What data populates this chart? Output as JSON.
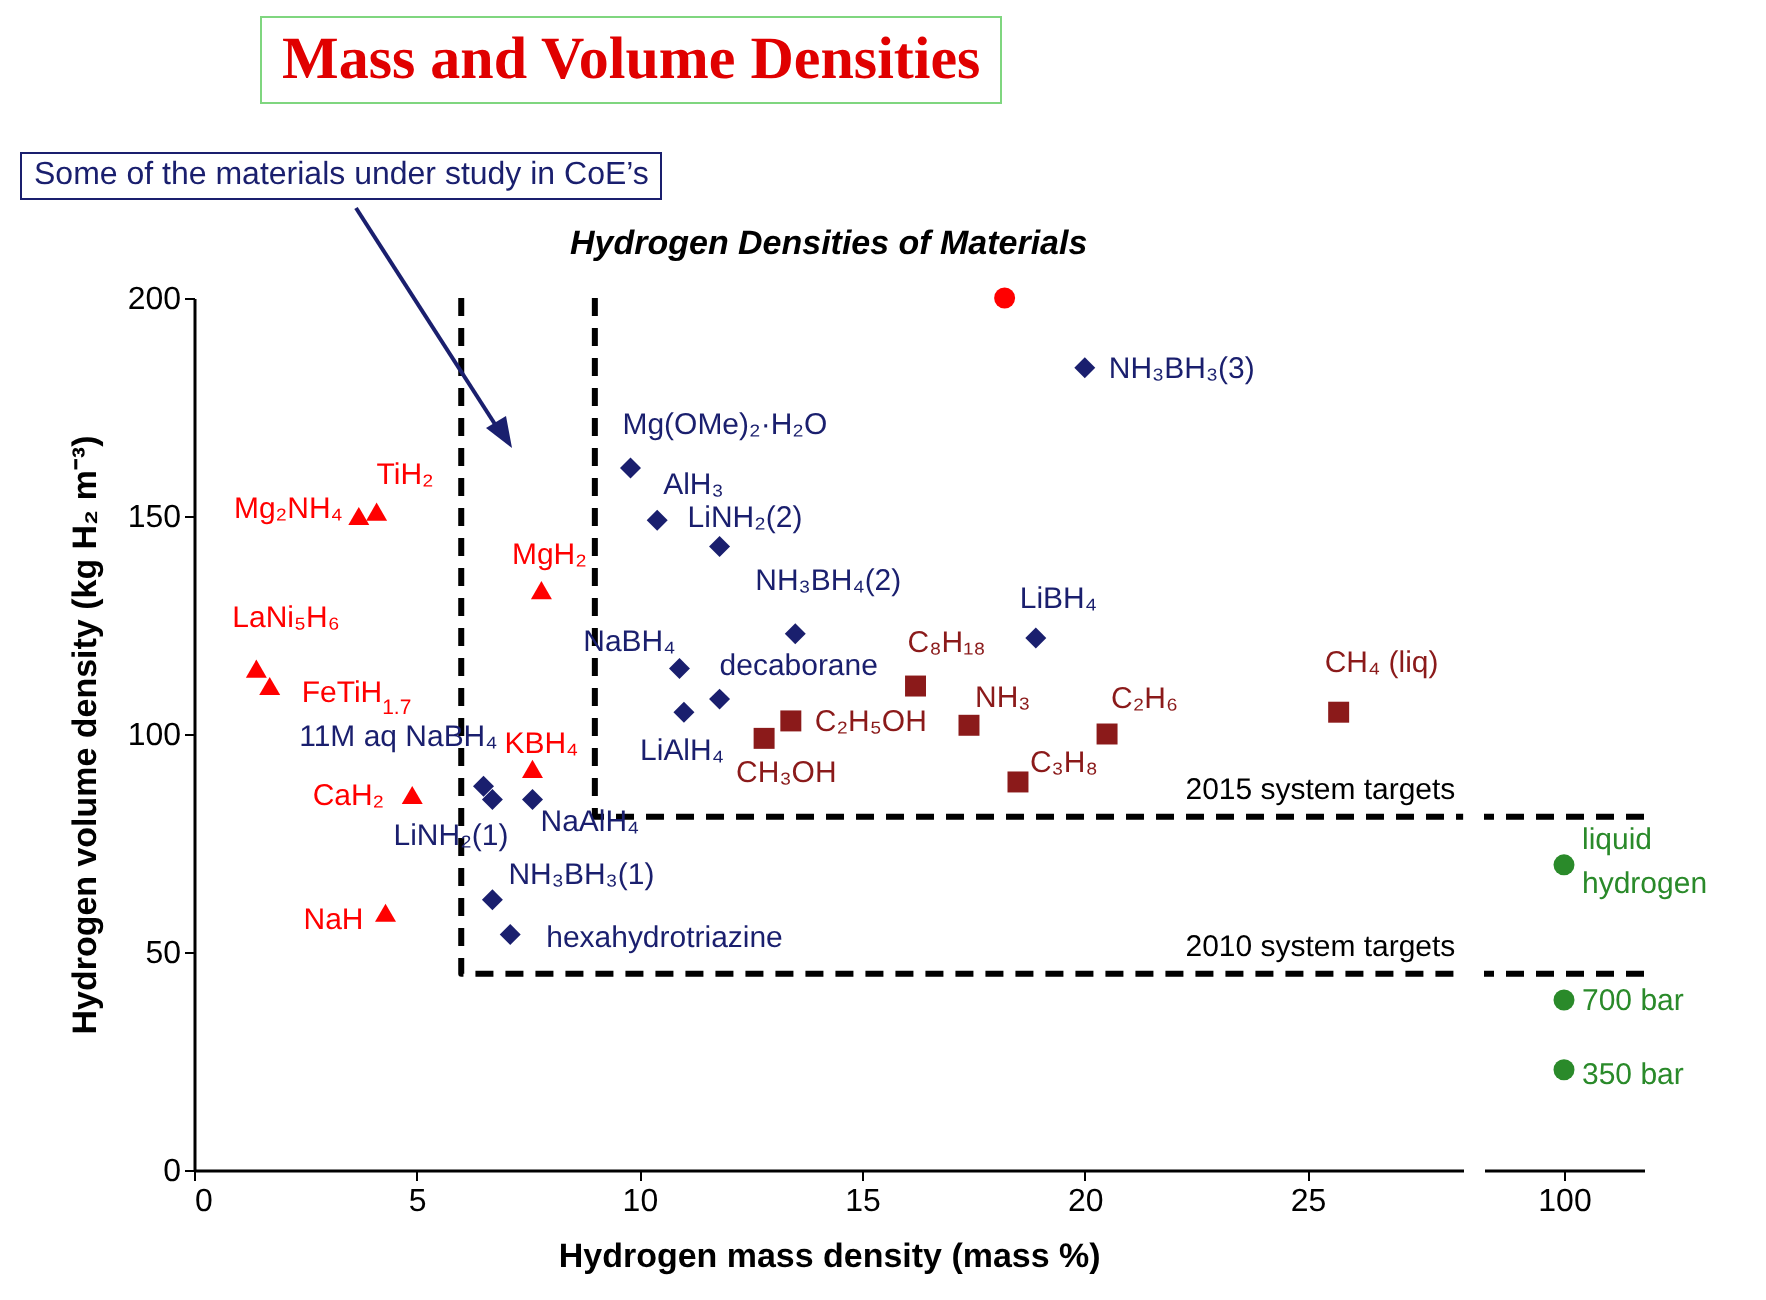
{
  "chart_data": [
    {
      "type": "scatter",
      "title": "Mass and Volume Densities",
      "subtitle": "Hydrogen Densities of Materials",
      "xlabel": "Hydrogen mass density (mass %)",
      "ylabel": "Hydrogen volume density (kg H₂ m⁻³)",
      "xlim": [
        0,
        28.5
      ],
      "xticks": [
        0,
        5,
        10,
        15,
        20,
        25
      ],
      "ylim": [
        0,
        200
      ],
      "yticks": [
        0,
        50,
        100,
        150,
        200
      ],
      "annotations": [
        "Some of the materials under study in CoE’s"
      ],
      "series": [
        {
          "name": "NH₃BH₃(3)",
          "color": "#1a1f6e",
          "marker": "diamond",
          "x": [
            20
          ],
          "values": [
            184
          ]
        },
        {
          "name": "Mg(OMe)₂·H₂O",
          "color": "#1a1f6e",
          "marker": "diamond",
          "x": [
            9.8
          ],
          "values": [
            161
          ]
        },
        {
          "name": "AlH₃",
          "color": "#1a1f6e",
          "marker": "diamond",
          "x": [
            10.4
          ],
          "values": [
            149
          ]
        },
        {
          "name": "LiNH₂(2)",
          "color": "#1a1f6e",
          "marker": "diamond",
          "x": [
            11.8
          ],
          "values": [
            143
          ]
        },
        {
          "name": "NH₃BH₄(2)",
          "color": "#1a1f6e",
          "marker": "diamond",
          "x": [
            13.5
          ],
          "values": [
            123
          ]
        },
        {
          "name": "LiBH₄",
          "color": "#1a1f6e",
          "marker": "diamond",
          "x": [
            18.9
          ],
          "values": [
            122
          ]
        },
        {
          "name": "NaBH₄",
          "color": "#1a1f6e",
          "marker": "diamond",
          "x": [
            10.9
          ],
          "values": [
            115
          ]
        },
        {
          "name": "decaborane",
          "color": "#1a1f6e",
          "marker": "diamond",
          "x": [
            11.8
          ],
          "values": [
            108
          ]
        },
        {
          "name": "LiAlH₄",
          "color": "#1a1f6e",
          "marker": "diamond",
          "x": [
            11
          ],
          "values": [
            105
          ]
        },
        {
          "name": "11M aq NaBH₄",
          "color": "#1a1f6e",
          "marker": "diamond",
          "x": [
            6.5
          ],
          "values": [
            88
          ]
        },
        {
          "name": "LiNH₂(1)",
          "color": "#1a1f6e",
          "marker": "diamond",
          "x": [
            6.7
          ],
          "values": [
            85
          ]
        },
        {
          "name": "NaAlH₄",
          "color": "#1a1f6e",
          "marker": "diamond",
          "x": [
            7.6
          ],
          "values": [
            85
          ]
        },
        {
          "name": "NH₃BH₃(1)",
          "color": "#1a1f6e",
          "marker": "diamond",
          "x": [
            6.7
          ],
          "values": [
            62
          ]
        },
        {
          "name": "hexahydrotriazine",
          "color": "#1a1f6e",
          "marker": "diamond",
          "x": [
            7.1
          ],
          "values": [
            54
          ]
        },
        {
          "name": "TiH₂",
          "color": "#ff0000",
          "marker": "triangle",
          "x": [
            4.1
          ],
          "values": [
            151
          ]
        },
        {
          "name": "Mg₂NH₄",
          "color": "#ff0000",
          "marker": "triangle",
          "x": [
            3.7
          ],
          "values": [
            150
          ]
        },
        {
          "name": "MgH₂",
          "color": "#ff0000",
          "marker": "triangle",
          "x": [
            7.8
          ],
          "values": [
            133
          ]
        },
        {
          "name": "LaNi₅H₆",
          "color": "#ff0000",
          "marker": "triangle",
          "x": [
            1.4
          ],
          "values": [
            115
          ]
        },
        {
          "name": "FeTiH$_{1.7}$",
          "color": "#ff0000",
          "marker": "triangle",
          "x": [
            1.7
          ],
          "values": [
            111
          ]
        },
        {
          "name": "KBH₄",
          "color": "#ff0000",
          "marker": "triangle",
          "x": [
            7.6
          ],
          "values": [
            92
          ]
        },
        {
          "name": "CaH₂",
          "color": "#ff0000",
          "marker": "triangle",
          "x": [
            4.9
          ],
          "values": [
            86
          ]
        },
        {
          "name": "NaH",
          "color": "#ff0000",
          "marker": "triangle",
          "x": [
            4.3
          ],
          "values": [
            59
          ]
        },
        {
          "name": "C₈H₁₈",
          "color": "#8b1a1a",
          "marker": "square",
          "x": [
            16.2
          ],
          "values": [
            111
          ]
        },
        {
          "name": "CH₄ (liq)",
          "color": "#8b1a1a",
          "marker": "square",
          "x": [
            25.7
          ],
          "values": [
            105
          ]
        },
        {
          "name": "NH₃",
          "color": "#8b1a1a",
          "marker": "square",
          "x": [
            17.4
          ],
          "values": [
            102
          ]
        },
        {
          "name": "C₂H₅OH",
          "color": "#8b1a1a",
          "marker": "square",
          "x": [
            13.4
          ],
          "values": [
            103
          ]
        },
        {
          "name": "CH₃OH",
          "color": "#8b1a1a",
          "marker": "square",
          "x": [
            12.8
          ],
          "values": [
            99
          ]
        },
        {
          "name": "C₂H₆",
          "color": "#8b1a1a",
          "marker": "square",
          "x": [
            20.5
          ],
          "values": [
            100
          ]
        },
        {
          "name": "C₃H₈",
          "color": "#8b1a1a",
          "marker": "square",
          "x": [
            18.5
          ],
          "values": [
            89
          ]
        },
        {
          "color": "#ff0000",
          "marker": "circle",
          "x": [
            18.2
          ],
          "values": [
            200
          ]
        },
        {
          "name": "2015 system targets",
          "type": "line",
          "line_style": "dashed",
          "color": "#000000",
          "x": [
            9,
            9,
            28.5
          ],
          "values": [
            200,
            81,
            81
          ]
        },
        {
          "name": "2010 system targets",
          "type": "line",
          "line_style": "dashed",
          "color": "#000000",
          "x": [
            6,
            6,
            28.5
          ],
          "values": [
            200,
            45,
            45
          ]
        }
      ]
    },
    {
      "type": "scatter",
      "categories": [
        "100"
      ],
      "ylim": [
        0,
        200
      ],
      "tick_labels": "x",
      "series": [
        {
          "name": "liquid hydrogen",
          "color": "#2a8a2a",
          "marker": "circle",
          "values": [
            70
          ]
        },
        {
          "name": "700 bar",
          "color": "#2a8a2a",
          "marker": "circle",
          "values": [
            39
          ]
        },
        {
          "name": "350 bar",
          "color": "#2a8a2a",
          "marker": "circle",
          "values": [
            23
          ]
        }
      ],
      "ref_lines": [
        {
          "axis": "y",
          "value": 81,
          "color": "#000000",
          "line_style": "dashed"
        },
        {
          "axis": "y",
          "value": 45,
          "color": "#000000",
          "line_style": "dashed"
        }
      ]
    }
  ]
}
